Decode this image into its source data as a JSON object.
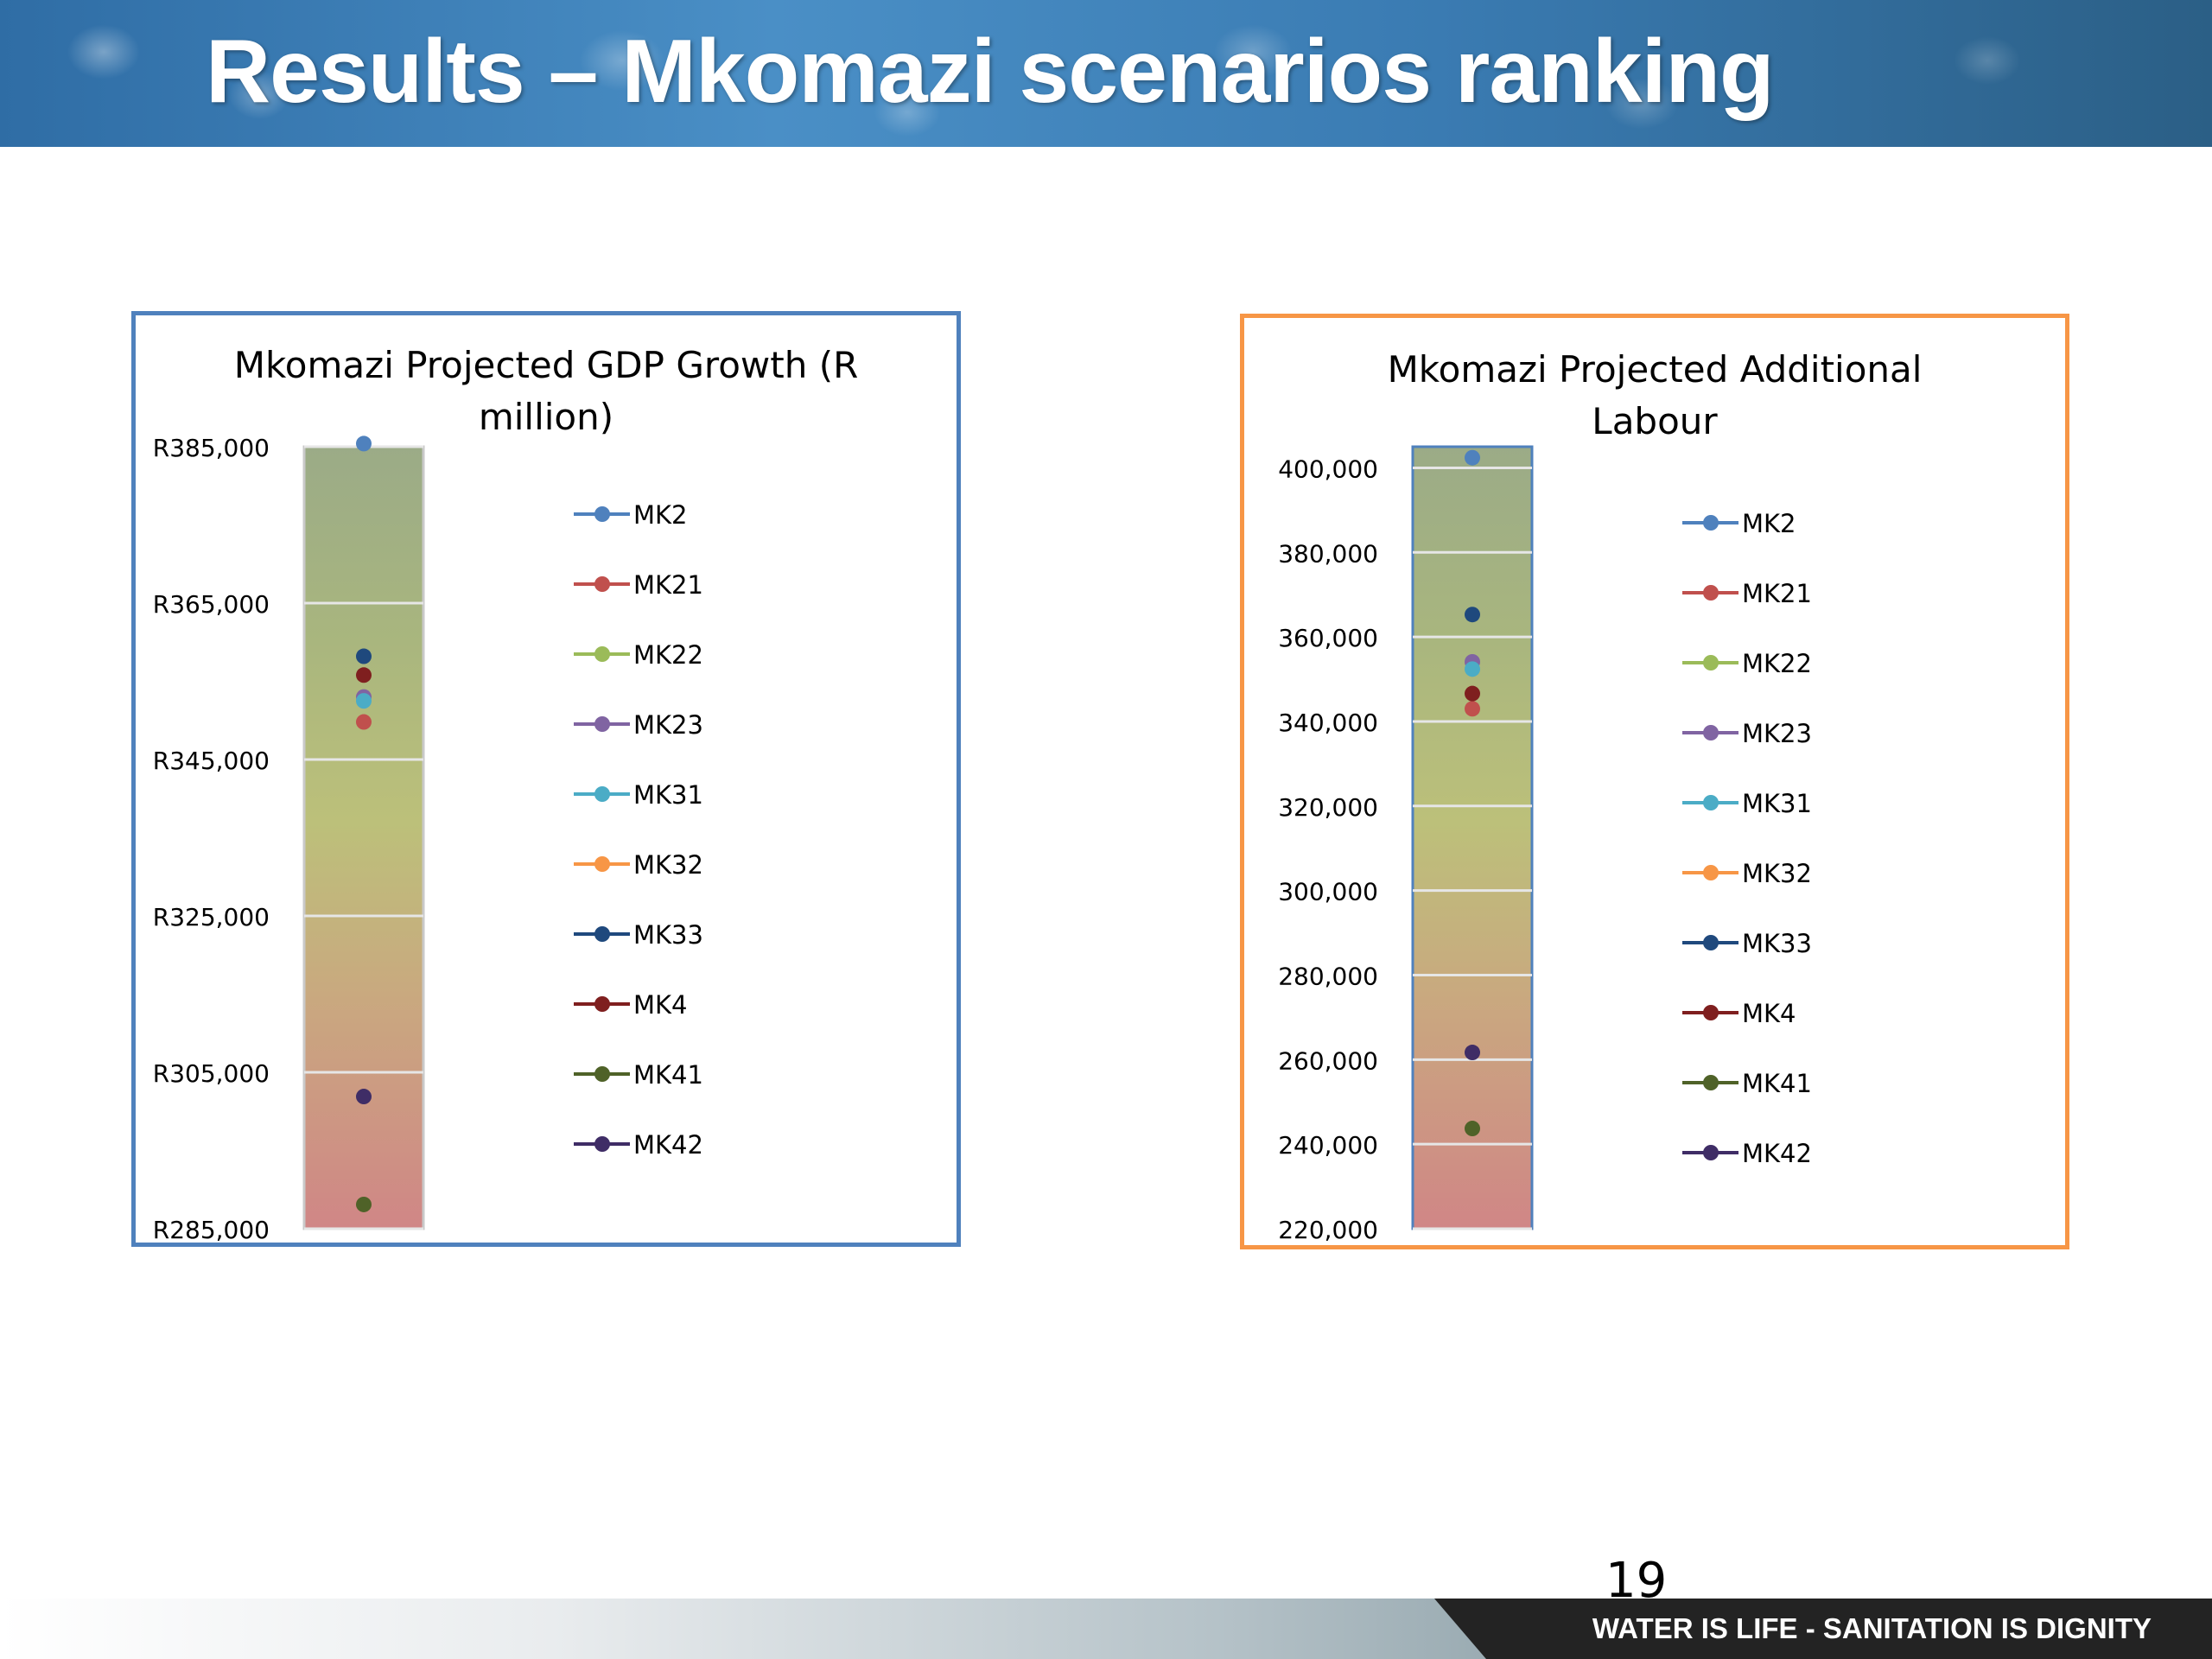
{
  "slide": {
    "title": "Results – Mkomazi scenarios ranking",
    "page_number": "19",
    "footer_text": "WATER IS LIFE - SANITATION IS DIGNITY"
  },
  "chart_data": [
    {
      "type": "scatter",
      "title_line1": "Mkomazi Projected GDP Growth (R",
      "title_line2": "million)",
      "ylim": [
        285000,
        385000
      ],
      "yticks": [
        385000,
        365000,
        345000,
        325000,
        305000,
        285000
      ],
      "tick_labels": [
        "R385,000",
        "R365,000",
        "R345,000",
        "R325,000",
        "R305,000",
        "R285,000"
      ],
      "grid": true,
      "legend_position": "right",
      "border_color": "#4f81bd",
      "series": [
        {
          "name": "MK2",
          "color": "#4f81bd",
          "y": 385400
        },
        {
          "name": "MK21",
          "color": "#c0504d",
          "y": 349800
        },
        {
          "name": "MK22",
          "color": "#9bbb59",
          "y": null
        },
        {
          "name": "MK23",
          "color": "#8064a2",
          "y": 353000
        },
        {
          "name": "MK31",
          "color": "#4bacc6",
          "y": 352500
        },
        {
          "name": "MK32",
          "color": "#f79646",
          "y": null
        },
        {
          "name": "MK33",
          "color": "#1f497d",
          "y": 358200
        },
        {
          "name": "MK4",
          "color": "#7f1f1f",
          "y": 355800
        },
        {
          "name": "MK41",
          "color": "#4f6228",
          "y": 288100
        },
        {
          "name": "MK42",
          "color": "#3f2d66",
          "y": 301900
        }
      ]
    },
    {
      "type": "scatter",
      "title_line1": "Mkomazi Projected Additional",
      "title_line2": "Labour",
      "ylim": [
        220000,
        405000
      ],
      "yticks": [
        400000,
        380000,
        360000,
        340000,
        320000,
        300000,
        280000,
        260000,
        240000,
        220000
      ],
      "tick_labels": [
        "400,000",
        "380,000",
        "360,000",
        "340,000",
        "320,000",
        "300,000",
        "280,000",
        "260,000",
        "240,000",
        "220,000"
      ],
      "grid": true,
      "legend_position": "right",
      "border_color": "#f79646",
      "series": [
        {
          "name": "MK2",
          "color": "#4f81bd",
          "y": 402400
        },
        {
          "name": "MK21",
          "color": "#c0504d",
          "y": 343000
        },
        {
          "name": "MK22",
          "color": "#9bbb59",
          "y": null
        },
        {
          "name": "MK23",
          "color": "#8064a2",
          "y": 354100
        },
        {
          "name": "MK31",
          "color": "#4bacc6",
          "y": 352400
        },
        {
          "name": "MK32",
          "color": "#f79646",
          "y": null
        },
        {
          "name": "MK33",
          "color": "#1f497d",
          "y": 365300
        },
        {
          "name": "MK4",
          "color": "#7f1f1f",
          "y": 346600
        },
        {
          "name": "MK41",
          "color": "#4f6228",
          "y": 243700
        },
        {
          "name": "MK42",
          "color": "#3f2d66",
          "y": 261700
        }
      ]
    }
  ]
}
